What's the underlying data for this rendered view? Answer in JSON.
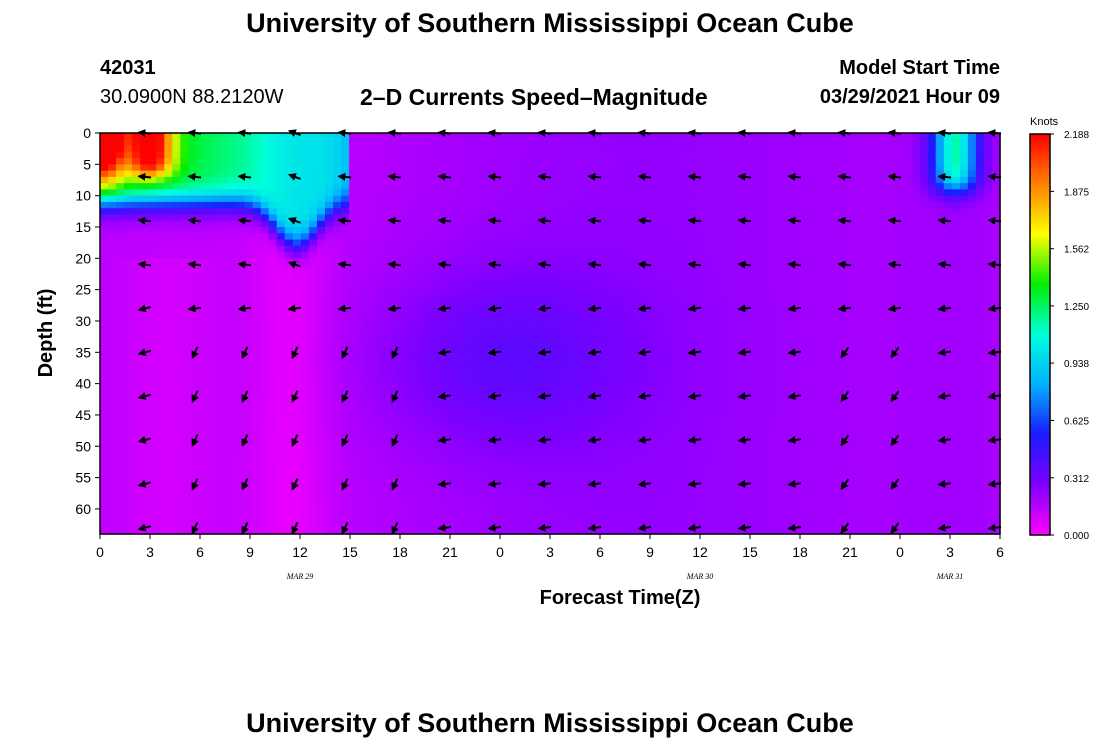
{
  "page": {
    "title": "University of Southern Mississippi Ocean Cube",
    "footer_title": "University of Southern Mississippi Ocean Cube",
    "station_id": "42031",
    "location": "30.0900N  88.2120W",
    "subtitle": "2–D Currents Speed–Magnitude",
    "model_start_label": "Model Start Time",
    "model_start_value": "03/29/2021 Hour 09"
  },
  "chart_data": {
    "type": "heatmap",
    "xlabel": "Forecast Time(Z)",
    "ylabel": "Depth (ft)",
    "x_hours_range": [
      0,
      54
    ],
    "y_range": [
      0,
      64
    ],
    "x_ticks": [
      "0",
      "3",
      "6",
      "9",
      "12",
      "15",
      "18",
      "21",
      "0",
      "3",
      "6",
      "9",
      "12",
      "15",
      "18",
      "21",
      "0",
      "3",
      "6"
    ],
    "y_ticks": [
      "0",
      "5",
      "10",
      "15",
      "20",
      "25",
      "30",
      "35",
      "40",
      "45",
      "50",
      "55",
      "60"
    ],
    "date_labels": [
      {
        "label": "MAR  29",
        "hour": 12
      },
      {
        "label": "MAR  30",
        "hour": 36
      },
      {
        "label": "MAR  31",
        "hour": 51
      }
    ],
    "colorbar": {
      "title": "Knots",
      "ticks": [
        "2.188",
        "1.875",
        "1.562",
        "1.250",
        "0.938",
        "0.625",
        "0.312",
        "0.000"
      ],
      "range": [
        0,
        2.188
      ]
    },
    "colors": [
      "#ff00ff",
      "#8000ff",
      "#1a1aff",
      "#00b0ff",
      "#00ffdd",
      "#00ee00",
      "#ffff00",
      "#ff8000",
      "#ff0000"
    ],
    "arrow_times": [
      2.7,
      5.7,
      8.7,
      11.7,
      14.7,
      17.7,
      20.7,
      23.7,
      26.7,
      29.7,
      32.7,
      35.7,
      38.7,
      41.7,
      44.7,
      47.7,
      50.7,
      53.7
    ],
    "arrow_depths": [
      0,
      7,
      14,
      21,
      28,
      35,
      42,
      49,
      56,
      63
    ]
  }
}
